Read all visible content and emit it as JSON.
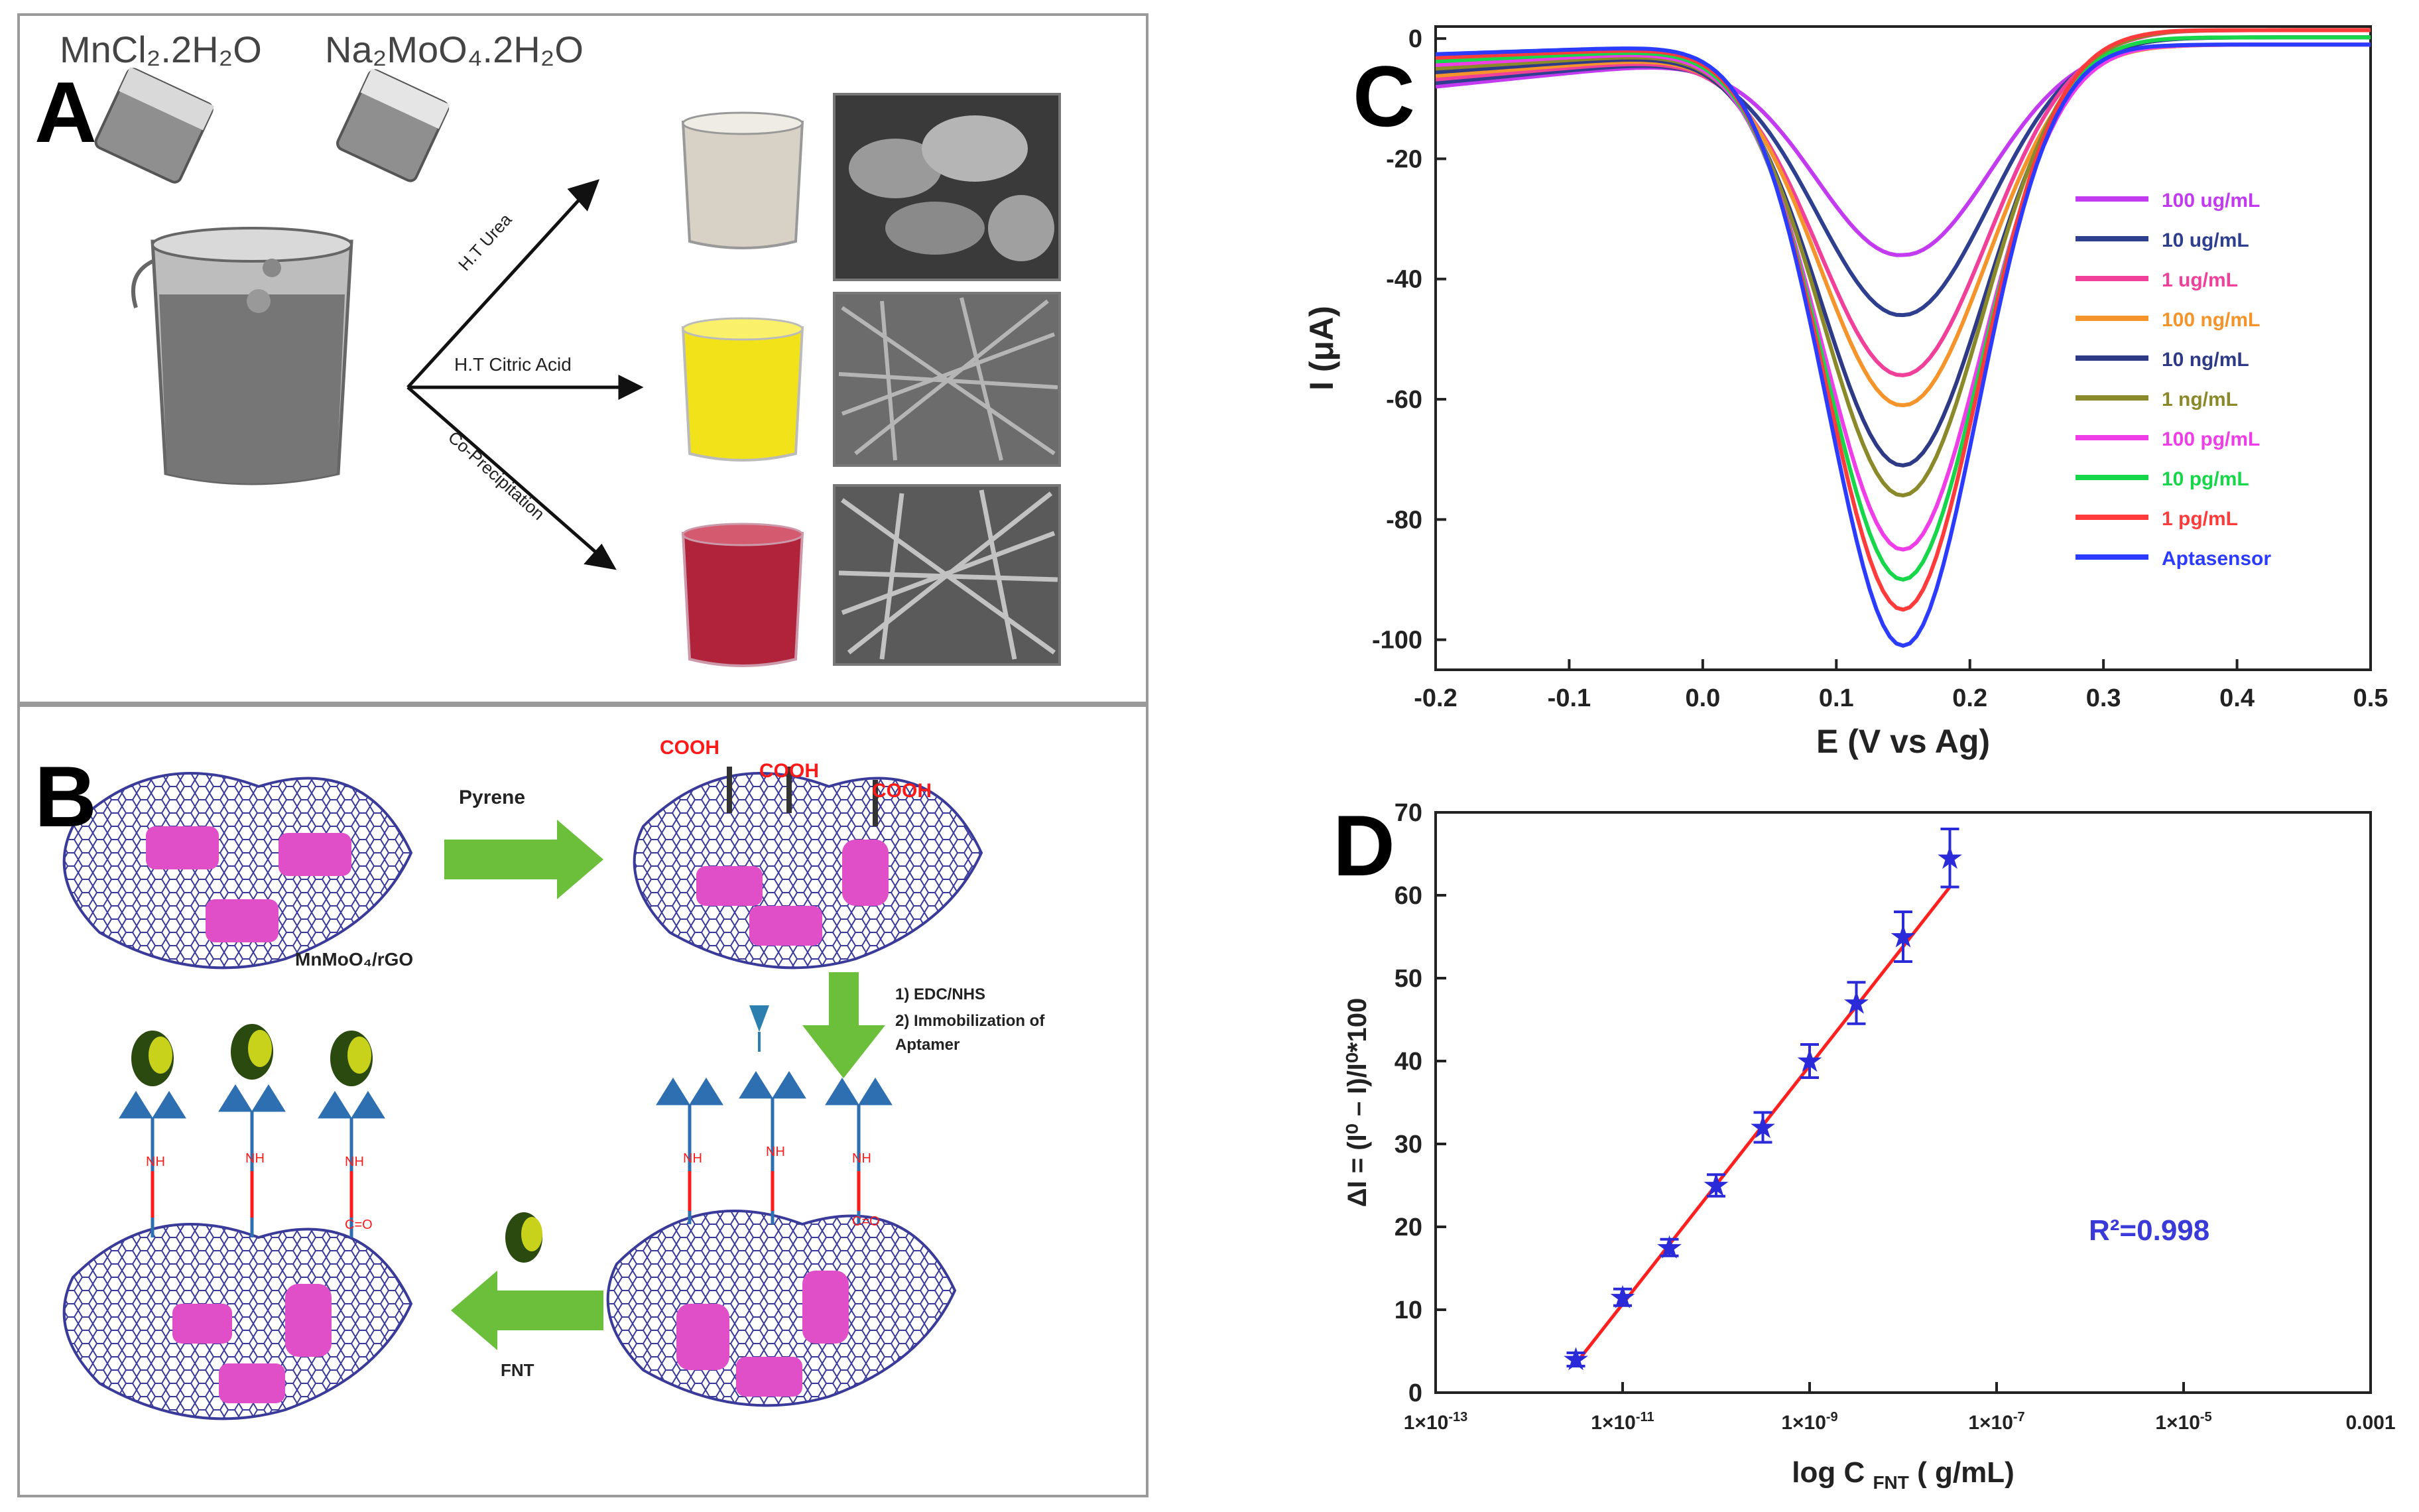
{
  "panel_a": {
    "letter": "A",
    "reagent_1": "MnCl₂.2H₂O",
    "reagent_2": "Na₂MoO₄.2H₂O",
    "route_1": "H.T Urea",
    "route_2": "H.T Citric Acid",
    "route_3": "Co-Precipitation",
    "colors": {
      "beaker_1": "#d8d2c6",
      "beaker_2": "#f2e21a",
      "beaker_3": "#b0233a"
    }
  },
  "panel_b": {
    "letter": "B",
    "step_pyrene": "Pyrene",
    "label_material": "MnMoO₄/rGO",
    "step_edc_1": "1) EDC/NHS",
    "step_edc_2": "2) Immobilization of",
    "step_edc_3": "Aptamer",
    "step_fnt": "FNT",
    "cooh": "COOH",
    "nh": "NH",
    "co": "C=O",
    "colors": {
      "arrow": "#6cbf3a",
      "sheet": "#3a3a9a",
      "particle": "#e04fc8",
      "label": "#ff1a1a"
    }
  },
  "panel_c": {
    "letter": "C",
    "chart_data": {
      "type": "line",
      "xlabel": "E (V vs Ag)",
      "ylabel": "I (μA)",
      "xlim": [
        -0.2,
        0.5
      ],
      "ylim": [
        -105,
        2
      ],
      "x_ticks": [
        "-0.2",
        "-0.1",
        "0.0",
        "0.1",
        "0.2",
        "0.3",
        "0.4",
        "0.5"
      ],
      "y_ticks": [
        "0",
        "-20",
        "-40",
        "-60",
        "-80",
        "-100"
      ],
      "legend_position": "right",
      "series": [
        {
          "name": "100 ug/mL",
          "color": "#c23bf0",
          "peak_x": 0.15,
          "peak_y": -36
        },
        {
          "name": "10 ug/mL",
          "color": "#2f3f8f",
          "peak_x": 0.15,
          "peak_y": -46
        },
        {
          "name": "1 ug/mL",
          "color": "#f0409a",
          "peak_x": 0.15,
          "peak_y": -56
        },
        {
          "name": "100 ng/mL",
          "color": "#f5942a",
          "peak_x": 0.15,
          "peak_y": -61
        },
        {
          "name": "10 ng/mL",
          "color": "#2e3a86",
          "peak_x": 0.15,
          "peak_y": -71
        },
        {
          "name": "1 ng/mL",
          "color": "#8a8a2a",
          "peak_x": 0.15,
          "peak_y": -76
        },
        {
          "name": "100 pg/mL",
          "color": "#ef3ee8",
          "peak_x": 0.15,
          "peak_y": -85
        },
        {
          "name": "10 pg/mL",
          "color": "#18d64a",
          "peak_x": 0.15,
          "peak_y": -90
        },
        {
          "name": "1 pg/mL",
          "color": "#ff3b3b",
          "peak_x": 0.15,
          "peak_y": -95
        },
        {
          "name": "Aptasensor",
          "color": "#2b3bff",
          "peak_x": 0.15,
          "peak_y": -101
        }
      ]
    }
  },
  "panel_d": {
    "letter": "D",
    "chart_data": {
      "type": "scatter",
      "xlabel": "log C",
      "xlabel_sub": "FNT",
      "xlabel_unit": " ( g/mL)",
      "ylabel": "ΔI = (I⁰ – I)/I⁰*100",
      "xlim": [
        -13,
        -3
      ],
      "ylim": [
        0,
        70
      ],
      "x_ticks": [
        {
          "v": -13,
          "base": "1×10",
          "exp": "-13"
        },
        {
          "v": -11,
          "base": "1×10",
          "exp": "-11"
        },
        {
          "v": -9,
          "base": "1×10",
          "exp": "-9"
        },
        {
          "v": -7,
          "base": "1×10",
          "exp": "-7"
        },
        {
          "v": -5,
          "base": "1×10",
          "exp": "-5"
        },
        {
          "v": -3,
          "base": "0.001",
          "exp": ""
        }
      ],
      "y_ticks": [
        "0",
        "10",
        "20",
        "30",
        "40",
        "50",
        "60",
        "70"
      ],
      "points": [
        {
          "x": -11.5,
          "y": 4,
          "err": 0.8
        },
        {
          "x": -11,
          "y": 11.5,
          "err": 1.0
        },
        {
          "x": -10.5,
          "y": 17.5,
          "err": 1.0
        },
        {
          "x": -10,
          "y": 25,
          "err": 1.3
        },
        {
          "x": -9.5,
          "y": 32,
          "err": 1.8
        },
        {
          "x": -9,
          "y": 40,
          "err": 2.0
        },
        {
          "x": -8.5,
          "y": 47,
          "err": 2.5
        },
        {
          "x": -8,
          "y": 55,
          "err": 3.0
        },
        {
          "x": -7.5,
          "y": 64.5,
          "err": 3.5
        }
      ],
      "fit_line": {
        "x": [
          -11.5,
          -7.5
        ],
        "y": [
          3.5,
          61
        ],
        "color": "#ff2020"
      },
      "marker_color": "#2a2ad8",
      "annotation": "R²=0.998"
    }
  }
}
